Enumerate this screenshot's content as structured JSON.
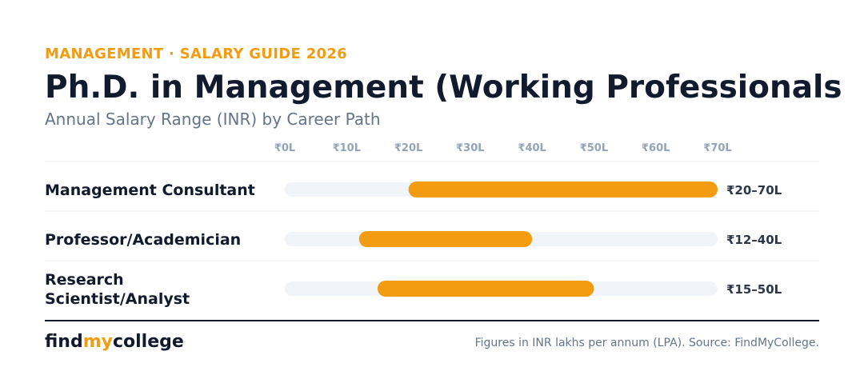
{
  "header": {
    "eyebrow": "MANAGEMENT · SALARY GUIDE 2026",
    "title": "Ph.D. in Management (Working Professionals",
    "subtitle": "Annual Salary Range (INR) by Career Path"
  },
  "chart_data": {
    "type": "bar",
    "orientation": "horizontal-range",
    "title": "Ph.D. in Management (Working Professionals",
    "subtitle": "Annual Salary Range (INR) by Career Path",
    "xlim": [
      0,
      70
    ],
    "ticks": [
      {
        "value": 0,
        "label": "₹0L"
      },
      {
        "value": 10,
        "label": "₹10L"
      },
      {
        "value": 20,
        "label": "₹20L"
      },
      {
        "value": 30,
        "label": "₹30L"
      },
      {
        "value": 40,
        "label": "₹40L"
      },
      {
        "value": 50,
        "label": "₹50L"
      },
      {
        "value": 60,
        "label": "₹60L"
      },
      {
        "value": 70,
        "label": "₹70L"
      }
    ],
    "categories": [
      [
        "Management Consultant"
      ],
      [
        "Professor/Academician"
      ],
      [
        "Research",
        "Scientist/Analyst"
      ]
    ],
    "ranges": [
      {
        "min": 20,
        "max": 70,
        "label": "₹20–70L"
      },
      {
        "min": 12,
        "max": 40,
        "label": "₹12–40L"
      },
      {
        "min": 15,
        "max": 50,
        "label": "₹15–50L"
      }
    ],
    "grid": false,
    "colors": {
      "bar": "#f39c12",
      "track": "#f1f4f8",
      "tick_text": "#94a3b8",
      "row_divider": "#eef1f5"
    }
  },
  "footer": {
    "brand_parts": [
      "find",
      "my",
      "college"
    ],
    "note": "Figures in INR lakhs per annum (LPA). Source: FindMyCollege."
  }
}
